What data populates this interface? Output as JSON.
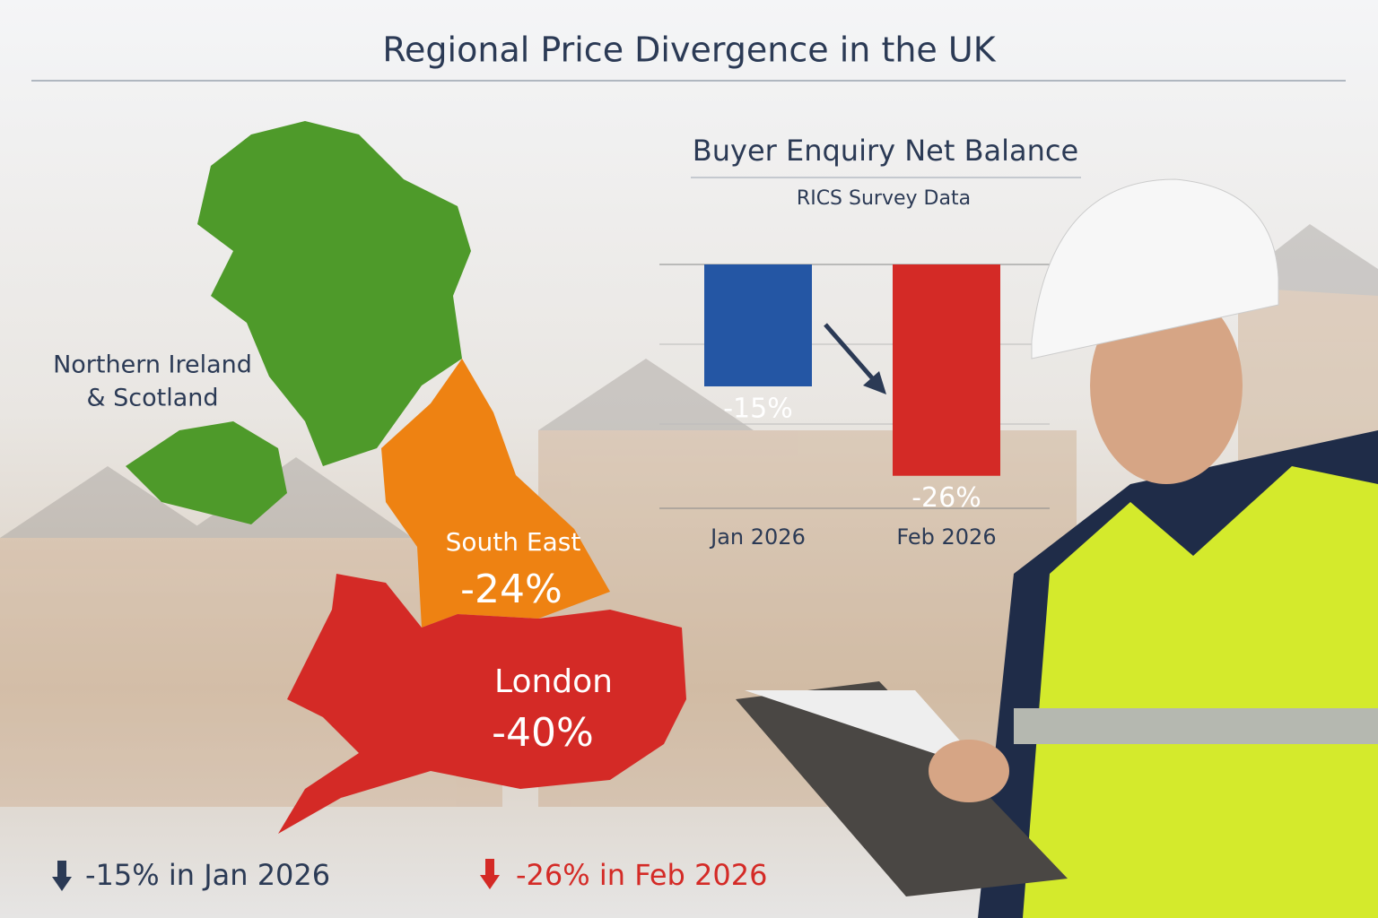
{
  "title": "Regional Price Divergence in the UK",
  "map": {
    "regions": [
      {
        "lines": [
          "Northern Ireland",
          "& Scotland"
        ]
      },
      {
        "lines": [
          "South East",
          "-24%"
        ]
      },
      {
        "lines": [
          "London",
          "-40%"
        ]
      }
    ]
  },
  "chart_data": {
    "type": "bar",
    "title": "Buyer Enquiry Net Balance",
    "subtitle": "RICS Survey Data",
    "categories": [
      "Jan 2026",
      "Feb 2026"
    ],
    "values": [
      -15,
      -26
    ],
    "value_labels": [
      "-15%",
      "-26%"
    ],
    "colors": [
      "#2456a4",
      "#d42a26"
    ],
    "ylim": [
      -30,
      0
    ]
  },
  "footer": [
    "-15% in Jan 2026",
    "-26% in Feb 2026"
  ]
}
